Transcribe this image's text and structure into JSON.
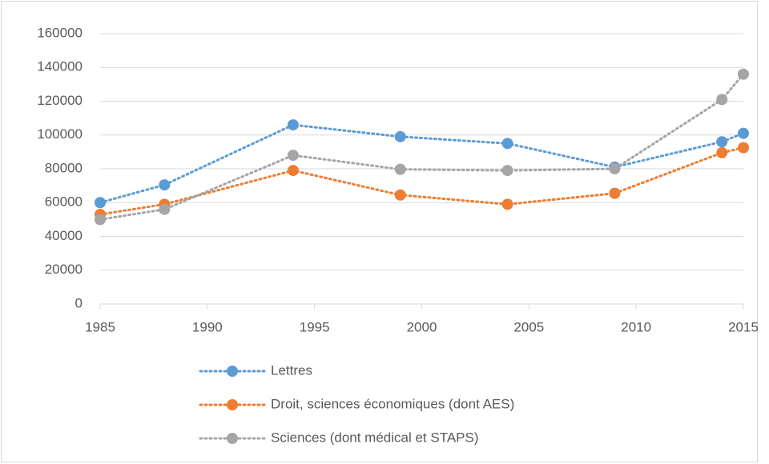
{
  "chart_data": {
    "type": "line",
    "x": [
      1985,
      1988,
      1994,
      1999,
      2004,
      2009,
      2014,
      2015
    ],
    "series": [
      {
        "name": "Lettres",
        "color": "#5b9bd5",
        "values": [
          60000,
          70500,
          106000,
          99000,
          95000,
          81000,
          96000,
          101000
        ]
      },
      {
        "name": "Droit, sciences économiques (dont AES)",
        "color": "#ed7d31",
        "values": [
          53000,
          59000,
          79000,
          64500,
          59000,
          65500,
          89500,
          92500
        ]
      },
      {
        "name": "Sciences (dont médical et STAPS)",
        "color": "#a5a5a5",
        "values": [
          50000,
          56000,
          88000,
          79700,
          79000,
          80000,
          121000,
          136000
        ]
      }
    ],
    "xlim": [
      1985,
      2015
    ],
    "xticks": [
      1985,
      1990,
      1995,
      2000,
      2005,
      2010,
      2015
    ],
    "ylim": [
      0,
      160000
    ],
    "yticks": [
      0,
      20000,
      40000,
      60000,
      80000,
      100000,
      120000,
      140000,
      160000
    ],
    "grid": true,
    "legend": "bottom"
  }
}
